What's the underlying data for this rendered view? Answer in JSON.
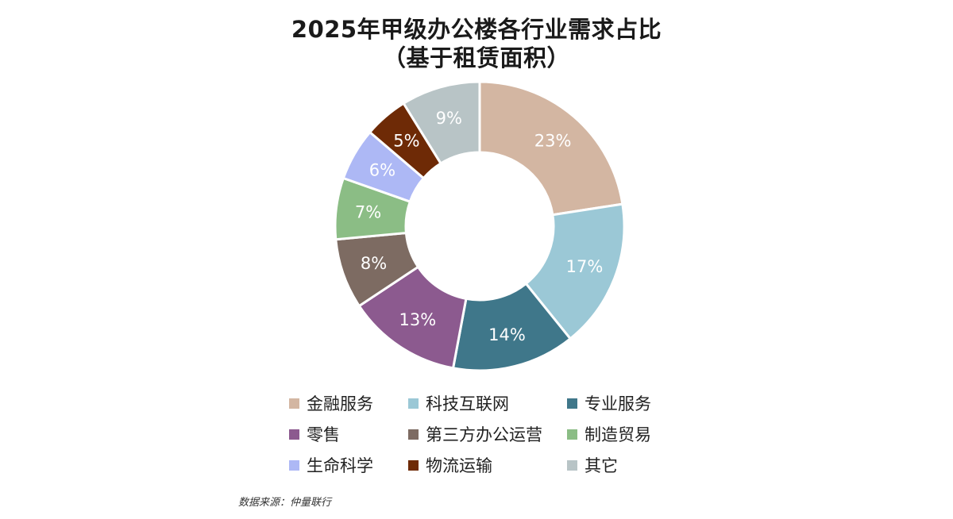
{
  "chart_data": {
    "type": "pie",
    "variant": "donut",
    "title": "2025年甲级办公楼各行业需求占比",
    "subtitle": "（基于租赁面积）",
    "legend_position": "bottom",
    "slices": [
      {
        "label": "金融服务",
        "value": 23,
        "value_label": "23%",
        "color": "#d3b6a2"
      },
      {
        "label": "科技互联网",
        "value": 17,
        "value_label": "17%",
        "color": "#9bc8d6"
      },
      {
        "label": "专业服务",
        "value": 14,
        "value_label": "14%",
        "color": "#3f778a"
      },
      {
        "label": "零售",
        "value": 13,
        "value_label": "13%",
        "color": "#8c5a8f"
      },
      {
        "label": "第三方办公运营",
        "value": 8,
        "value_label": "8%",
        "color": "#7d6b62"
      },
      {
        "label": "制造贸易",
        "value": 7,
        "value_label": "7%",
        "color": "#8bbd85"
      },
      {
        "label": "生命科学",
        "value": 6,
        "value_label": "6%",
        "color": "#adb8f5"
      },
      {
        "label": "物流运输",
        "value": 5,
        "value_label": "5%",
        "color": "#6e2a06"
      },
      {
        "label": "其它",
        "value": 9,
        "value_label": "9%",
        "color": "#b8c4c6"
      }
    ]
  },
  "source": "数据来源：仲量联行"
}
